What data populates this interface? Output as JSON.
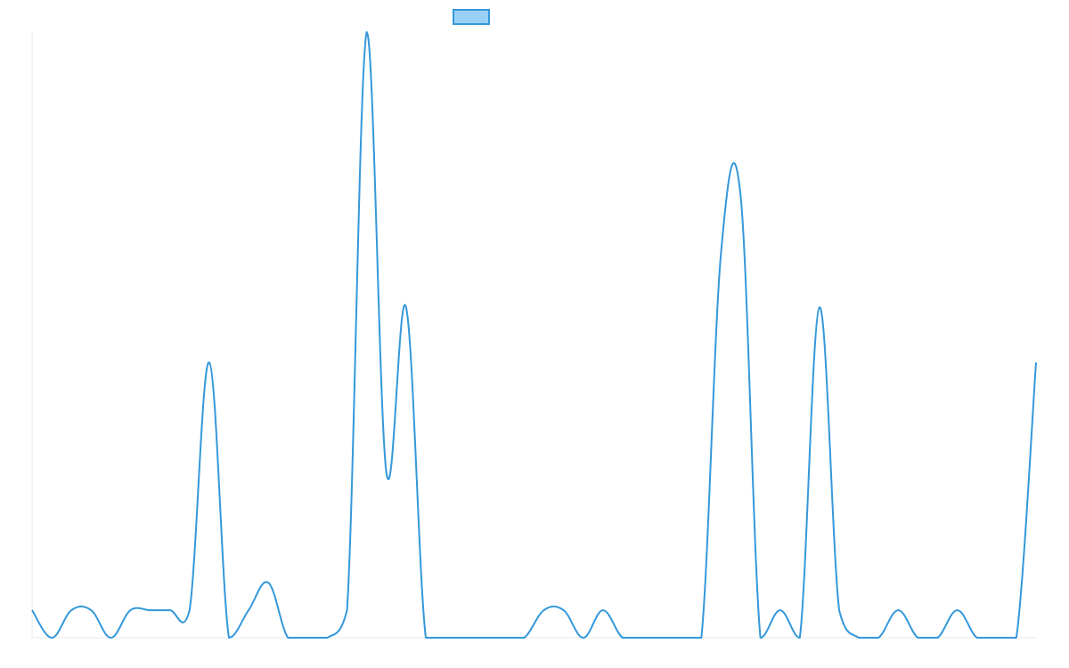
{
  "chart_data": {
    "type": "line",
    "title": "",
    "xlabel": "",
    "ylabel": "",
    "legend": {
      "placement": "top-center",
      "entries": [
        ""
      ]
    },
    "grid": false,
    "smooth": true,
    "ylim": [
      0,
      22
    ],
    "x": [
      0,
      1,
      2,
      3,
      4,
      5,
      6,
      7,
      8,
      9,
      10,
      11,
      12,
      13,
      14,
      15,
      16,
      17,
      18,
      19,
      20,
      21,
      22,
      23,
      24,
      25,
      26,
      27,
      28,
      29,
      30,
      31,
      32,
      33,
      34,
      35,
      36,
      37,
      38,
      39,
      40,
      41,
      42,
      43,
      44,
      45,
      46,
      47,
      48,
      49,
      50,
      51
    ],
    "series": [
      {
        "name": "",
        "color": "#3498db",
        "fill": "#99d0f5",
        "values": [
          1,
          0,
          1,
          1,
          0,
          1,
          1,
          1,
          1,
          10,
          0,
          1,
          2,
          0,
          0,
          0,
          1,
          22,
          6,
          12,
          0,
          0,
          0,
          0,
          0,
          0,
          1,
          1,
          0,
          1,
          0,
          0,
          0,
          0,
          0,
          14,
          16,
          0,
          1,
          0,
          12,
          1,
          0,
          0,
          1,
          0,
          0,
          1,
          0,
          0,
          0,
          10
        ]
      }
    ]
  }
}
